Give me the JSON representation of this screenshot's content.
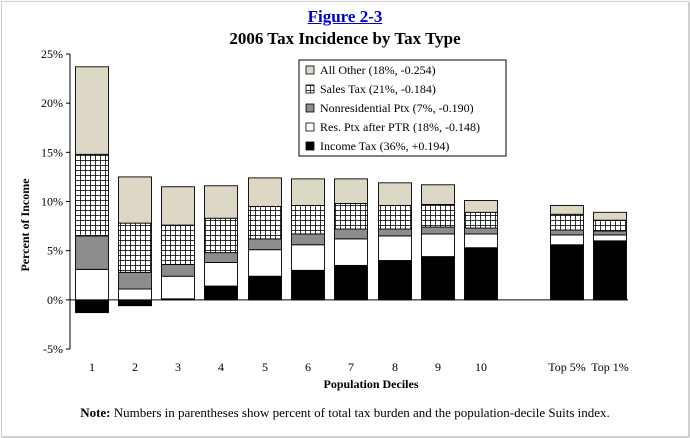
{
  "figure_label": "Figure 2-3",
  "note": {
    "label": "Note:",
    "text": "Numbers in parentheses show percent of total tax burden and the population-decile Suits index."
  },
  "chart_data": {
    "type": "bar",
    "stacked": true,
    "title": "2006 Tax Incidence by Tax Type",
    "xlabel": "Population Deciles",
    "ylabel": "Percent of Income",
    "ylim": [
      -5,
      25
    ],
    "yticks": [
      "-5%",
      "0%",
      "5%",
      "10%",
      "15%",
      "20%",
      "25%"
    ],
    "yticks_values": [
      -5,
      0,
      5,
      10,
      15,
      20,
      25
    ],
    "categories": [
      "1",
      "2",
      "3",
      "4",
      "5",
      "6",
      "7",
      "8",
      "9",
      "10",
      "Top 5%",
      "Top 1%"
    ],
    "legend_position": "top-right",
    "grid": false,
    "series": [
      {
        "name": "Income Tax (36%, +0.194)",
        "fill": "solid-black",
        "values": [
          -1.3,
          -0.6,
          0.1,
          1.4,
          2.4,
          3.0,
          3.5,
          4.0,
          4.4,
          5.3,
          5.6,
          6.0
        ]
      },
      {
        "name": "Res. Ptx after PTR (18%, -0.148)",
        "fill": "white",
        "values": [
          3.1,
          1.1,
          2.3,
          2.4,
          2.7,
          2.6,
          2.7,
          2.5,
          2.3,
          1.4,
          1.0,
          0.6
        ]
      },
      {
        "name": "Nonresidential Ptx (7%, -0.190)",
        "fill": "gray",
        "values": [
          3.4,
          1.7,
          1.2,
          1.0,
          1.1,
          1.1,
          1.0,
          0.7,
          0.7,
          0.6,
          0.5,
          0.4
        ]
      },
      {
        "name": "Sales Tax (21%, -0.184)",
        "fill": "grid-pattern",
        "values": [
          8.3,
          5.0,
          4.0,
          3.5,
          3.3,
          2.9,
          2.6,
          2.4,
          2.3,
          1.6,
          1.6,
          1.1
        ]
      },
      {
        "name": "All Other (18%, -0.254)",
        "fill": "beige",
        "values": [
          8.9,
          4.7,
          3.9,
          3.3,
          2.9,
          2.7,
          2.5,
          2.3,
          2.0,
          1.2,
          0.9,
          0.8
        ]
      }
    ],
    "colors": {
      "income": "#000000",
      "residential": "#ffffff",
      "nonresidential": "#8c8c8c",
      "sales_bg": "#ffffff",
      "sales_lines": "#000000",
      "other": "#ddd8c6",
      "outline": "#000000"
    }
  }
}
